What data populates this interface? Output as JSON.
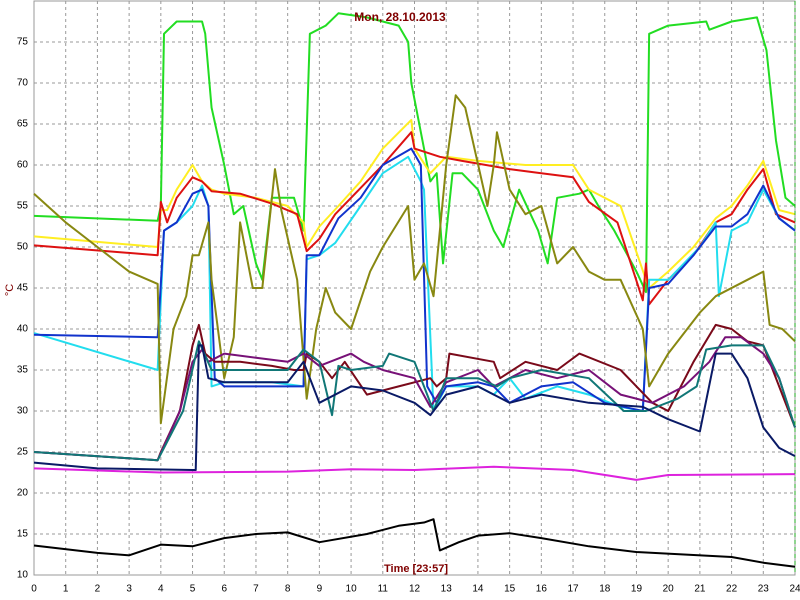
{
  "chart_data": {
    "type": "line",
    "title": "Mon, 28.10.2013",
    "x_label": "Time [23:57]",
    "y_label": "°C",
    "xlim": [
      0,
      24
    ],
    "xticks": [
      0,
      1,
      2,
      3,
      4,
      5,
      6,
      7,
      8,
      9,
      10,
      11,
      12,
      13,
      14,
      15,
      16,
      17,
      18,
      19,
      20,
      21,
      22,
      23,
      24
    ],
    "ylim": [
      10,
      80
    ],
    "yticks": [
      10,
      15,
      20,
      25,
      30,
      35,
      40,
      45,
      50,
      55,
      60,
      65,
      70,
      75
    ],
    "grid": true,
    "series": [
      {
        "color": "#22dd22",
        "x": [
          0,
          3.9,
          4,
          4.1,
          4.5,
          5.3,
          5.4,
          5.6,
          6,
          6.3,
          6.6,
          7,
          7.2,
          7.5,
          8.2,
          8.5,
          8.7,
          9.2,
          9.6,
          10.5,
          11.5,
          11.8,
          11.9,
          12.3,
          12.5,
          12.7,
          12.9,
          13.2,
          13.5,
          14,
          14.5,
          14.8,
          15.3,
          15.9,
          16.2,
          16.5,
          17.2,
          17.5,
          17.8,
          18.3,
          19,
          19.3,
          19.4,
          20,
          21.2,
          21.3,
          22,
          22.8,
          23.1,
          23.4,
          23.7,
          24
        ],
        "values": [
          53.8,
          53.2,
          55,
          76,
          77.5,
          77.5,
          76,
          67,
          60,
          54,
          55,
          48,
          46,
          56,
          56,
          52,
          76,
          77,
          78.5,
          78,
          77,
          75,
          70,
          62,
          58,
          59,
          48,
          59,
          59,
          57,
          52,
          50,
          57,
          52,
          48,
          56,
          56.5,
          57,
          55,
          52,
          47,
          44.5,
          76,
          77,
          77.5,
          76.5,
          77.5,
          78,
          74,
          63,
          56,
          55
        ]
      },
      {
        "color": "#ffee22",
        "x": [
          0,
          3.9,
          4,
          4.2,
          4.5,
          5,
          5.3,
          5.6,
          6,
          7,
          8,
          8.5,
          8.6,
          9,
          9.6,
          10.3,
          11,
          11.9,
          12,
          12.5,
          13,
          14,
          15.5,
          17,
          17.5,
          18.5,
          19.3,
          19.4,
          20,
          20.8,
          21.5,
          22,
          22.5,
          23,
          23.5,
          24
        ],
        "values": [
          51.3,
          50,
          54.5,
          54.5,
          57,
          60,
          58,
          57,
          56.5,
          56,
          55,
          53,
          50,
          52.5,
          55,
          58,
          62,
          65.5,
          62,
          59,
          61,
          60.5,
          60,
          60,
          57,
          55,
          46,
          45,
          47,
          50,
          53.5,
          55,
          57.5,
          60.5,
          54.5,
          54
        ]
      },
      {
        "color": "#dd1111",
        "x": [
          0,
          3.9,
          4,
          4.2,
          4.5,
          5,
          5.3,
          5.6,
          6.5,
          7.5,
          8.3,
          8.6,
          9,
          9.5,
          10,
          11,
          11.9,
          12,
          12.8,
          13.5,
          15,
          16,
          17,
          17.5,
          18.4,
          19.2,
          19.3,
          19.4,
          20,
          20.8,
          21.5,
          22,
          22.5,
          23,
          23.4,
          24
        ],
        "values": [
          50.2,
          49,
          55.5,
          53,
          56,
          58.5,
          58,
          56.8,
          56.5,
          55.3,
          54,
          49.5,
          51,
          54,
          56,
          60,
          64,
          62,
          61,
          60.5,
          59.5,
          59,
          58.5,
          55.5,
          53,
          43.5,
          48,
          43,
          46,
          49,
          53,
          54,
          57,
          59.5,
          54,
          53
        ]
      },
      {
        "color": "#22ddee",
        "x": [
          0,
          3.9,
          4.1,
          4.5,
          5,
          5.3,
          5.5,
          5.6,
          6,
          7.5,
          8.5,
          8.6,
          9,
          9.5,
          10.3,
          11,
          11.8,
          12.2,
          12.3,
          12.6,
          13,
          14,
          14.5,
          15,
          15.5,
          16.5,
          17.5,
          18.5,
          19.2,
          19.4,
          20,
          21,
          21.5,
          21.6,
          22,
          22.5,
          23,
          23.5,
          24
        ],
        "values": [
          39.5,
          35,
          52,
          53,
          55,
          57.5,
          55,
          33,
          33.5,
          33.5,
          33,
          48.5,
          49,
          50.5,
          55,
          59,
          61,
          58,
          57,
          30,
          33,
          33,
          32,
          34,
          31.5,
          33,
          32,
          30.5,
          30,
          46,
          46,
          50,
          53,
          44,
          52,
          53,
          57,
          53.5,
          52
        ]
      },
      {
        "color": "#1133cc",
        "x": [
          0,
          3.9,
          4.1,
          4.5,
          5,
          5.3,
          5.5,
          5.7,
          6,
          8.5,
          8.6,
          9,
          9.6,
          10.3,
          11,
          11.9,
          12.2,
          12.4,
          12.7,
          13,
          14,
          14.5,
          15,
          16,
          17,
          18,
          19.2,
          19.4,
          20,
          20.8,
          21.5,
          22,
          22.5,
          23,
          23.5,
          24
        ],
        "values": [
          39.3,
          39,
          52,
          53,
          56.5,
          57,
          55,
          34,
          33,
          33,
          49,
          49,
          53.5,
          56,
          60,
          62,
          60,
          33,
          31,
          33,
          33.5,
          33,
          31,
          33,
          33.5,
          31,
          30,
          45,
          45.5,
          49,
          52.5,
          52.5,
          54,
          57.5,
          53.5,
          52
        ]
      },
      {
        "color": "#888811",
        "x": [
          0,
          1,
          2,
          3,
          3.9,
          4,
          4.4,
          4.8,
          5,
          5.2,
          5.5,
          5.6,
          6,
          6.3,
          6.5,
          6.9,
          7.2,
          7.6,
          7.8,
          8.3,
          8.6,
          8.9,
          9.2,
          9.5,
          10,
          10.6,
          11,
          11.8,
          12,
          12.3,
          12.6,
          13,
          13.3,
          13.6,
          14.3,
          14.5,
          14.6,
          15,
          15.5,
          16,
          16.5,
          17,
          17.5,
          18,
          18.5,
          19.2,
          19.4,
          20,
          21,
          21.5,
          22.5,
          23,
          23.2,
          23.6,
          24
        ],
        "values": [
          56.5,
          53,
          50,
          47,
          45.5,
          28.5,
          40,
          44,
          49,
          49,
          53,
          46,
          34,
          39,
          53,
          45,
          45,
          59.5,
          54.5,
          46,
          31.5,
          40,
          45,
          42,
          40,
          47,
          50,
          55,
          46,
          48,
          44,
          60,
          68.5,
          67,
          55,
          60,
          64,
          57,
          54,
          55,
          48,
          50,
          47,
          46,
          46,
          40,
          33,
          37,
          42,
          44,
          46,
          47,
          40.5,
          40,
          38.5
        ]
      },
      {
        "color": "#7a0a1a",
        "x": [
          0,
          3.9,
          4,
          4.6,
          5,
          5.2,
          5.4,
          5.7,
          6.5,
          7.5,
          8.2,
          8.5,
          8.6,
          9,
          9.4,
          9.8,
          10.5,
          11.5,
          12.5,
          12.7,
          13,
          13.1,
          14.5,
          14.7,
          15.5,
          16.5,
          17.2,
          18.5,
          19.5,
          20,
          20.8,
          21.5,
          22,
          22.5,
          23,
          23.6,
          24
        ],
        "values": [
          25,
          24,
          25,
          30,
          38,
          40.5,
          37,
          36,
          36,
          35.5,
          35,
          35,
          37,
          36,
          34,
          36,
          32,
          33,
          34,
          33,
          34,
          37,
          36,
          34,
          36,
          35,
          37,
          35,
          31,
          30,
          36,
          40.5,
          40,
          38.5,
          38,
          32,
          28
        ]
      },
      {
        "color": "#771177",
        "x": [
          0,
          3.9,
          4.6,
          5,
          5.3,
          5.5,
          6,
          7,
          8,
          8.5,
          9,
          10,
          10.4,
          11,
          12,
          12.5,
          13,
          14,
          14.5,
          15.5,
          16.5,
          17.5,
          18.5,
          19.5,
          20.5,
          21.3,
          21.8,
          22.3,
          23,
          23.5,
          24
        ],
        "values": [
          25,
          24,
          30,
          36,
          37.5,
          36,
          37,
          36.5,
          36,
          37,
          35.5,
          37,
          36,
          35,
          34,
          30.5,
          33.5,
          35,
          33,
          35,
          34,
          35,
          32,
          31,
          33,
          36,
          39,
          39,
          37,
          34,
          28
        ]
      },
      {
        "color": "#117777",
        "x": [
          0,
          3.9,
          4.7,
          5.2,
          5.6,
          7,
          8,
          8.5,
          9,
          9.4,
          9.6,
          10,
          11,
          11.2,
          12,
          12.6,
          13,
          14,
          14.6,
          15,
          16,
          17.5,
          18.6,
          19.3,
          20.3,
          20.9,
          21.2,
          22,
          23,
          23.5,
          24
        ],
        "values": [
          25,
          24,
          30,
          38.5,
          35,
          35,
          35,
          37.5,
          36,
          29.5,
          35.5,
          35,
          35.5,
          37,
          36,
          30,
          34,
          34,
          33,
          34,
          35,
          34,
          30,
          30,
          31.5,
          33,
          37.5,
          38,
          38,
          34,
          28
        ]
      },
      {
        "color": "#0a1a66",
        "x": [
          0,
          2,
          5,
          5.1,
          5.2,
          5.3,
          5.5,
          6,
          8,
          8.5,
          9,
          10,
          11,
          12,
          12.5,
          13,
          14,
          15,
          16,
          17.5,
          19.2,
          20,
          21,
          21.5,
          22,
          22.5,
          23,
          23.5,
          24
        ],
        "values": [
          23.7,
          23,
          22.8,
          22.8,
          38,
          38,
          34,
          33.5,
          33.5,
          36,
          31,
          33,
          32.5,
          31,
          29.5,
          32,
          33,
          31,
          32,
          31,
          30.5,
          29,
          27.5,
          37,
          37,
          34,
          28,
          25.5,
          24.5
        ]
      },
      {
        "color": "#dd22dd",
        "x": [
          0,
          4,
          8,
          10,
          12,
          14.5,
          17,
          19,
          20,
          24
        ],
        "values": [
          23,
          22.5,
          22.6,
          22.9,
          22.8,
          23.2,
          22.8,
          21.6,
          22.2,
          22.3
        ]
      },
      {
        "color": "#000000",
        "x": [
          0,
          2,
          3,
          4,
          5,
          6,
          7,
          8,
          9,
          10.5,
          11.5,
          12.3,
          12.6,
          12.8,
          13.4,
          14,
          15,
          16,
          17.5,
          19,
          20.5,
          22,
          23,
          24
        ],
        "values": [
          13.6,
          12.7,
          12.4,
          13.7,
          13.5,
          14.5,
          15,
          15.2,
          14,
          15,
          16,
          16.4,
          16.8,
          13,
          14,
          14.8,
          15.1,
          14.5,
          13.5,
          12.8,
          12.5,
          12.2,
          11.5,
          11
        ]
      }
    ]
  }
}
